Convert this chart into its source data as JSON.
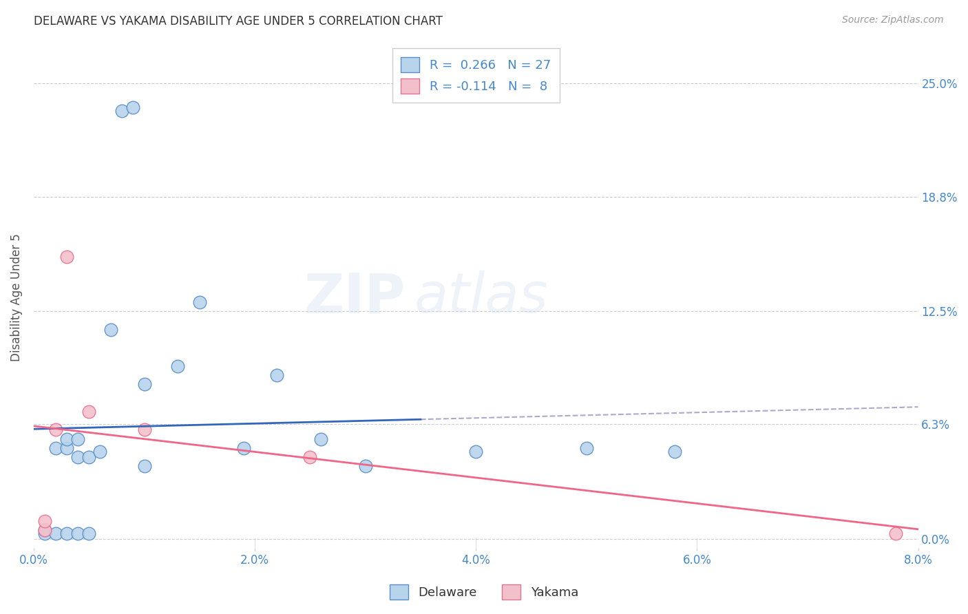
{
  "title": "DELAWARE VS YAKAMA DISABILITY AGE UNDER 5 CORRELATION CHART",
  "source": "Source: ZipAtlas.com",
  "ylabel": "Disability Age Under 5",
  "xlabel_ticks": [
    "0.0%",
    "2.0%",
    "4.0%",
    "6.0%",
    "8.0%"
  ],
  "xlabel_vals": [
    0.0,
    0.02,
    0.04,
    0.06,
    0.08
  ],
  "ytick_labels": [
    "0.0%",
    "6.3%",
    "12.5%",
    "18.8%",
    "25.0%"
  ],
  "ytick_vals": [
    0.0,
    0.063,
    0.125,
    0.188,
    0.25
  ],
  "xlim": [
    0.0,
    0.08
  ],
  "ylim": [
    -0.005,
    0.27
  ],
  "delaware_R": 0.266,
  "delaware_N": 27,
  "yakama_R": -0.114,
  "yakama_N": 8,
  "delaware_color": "#b8d4eb",
  "yakama_color": "#f2c0cb",
  "delaware_edge_color": "#5b8ec7",
  "yakama_edge_color": "#e87090",
  "delaware_line_color": "#3366bb",
  "yakama_line_color": "#ee6688",
  "trendline_color": "#aaaacc",
  "background_color": "#ffffff",
  "grid_color": "#cccccc",
  "title_color": "#333333",
  "axis_label_color": "#4488cc",
  "watermark": "ZIPatlas",
  "delaware_x": [
    0.001,
    0.001,
    0.002,
    0.002,
    0.003,
    0.003,
    0.003,
    0.004,
    0.004,
    0.004,
    0.005,
    0.005,
    0.006,
    0.007,
    0.008,
    0.009,
    0.01,
    0.01,
    0.013,
    0.015,
    0.019,
    0.022,
    0.026,
    0.03,
    0.04,
    0.05,
    0.058
  ],
  "delaware_y": [
    0.003,
    0.005,
    0.003,
    0.05,
    0.003,
    0.05,
    0.055,
    0.003,
    0.045,
    0.055,
    0.003,
    0.045,
    0.048,
    0.115,
    0.235,
    0.237,
    0.04,
    0.085,
    0.095,
    0.13,
    0.05,
    0.09,
    0.055,
    0.04,
    0.048,
    0.05,
    0.048
  ],
  "yakama_x": [
    0.001,
    0.001,
    0.002,
    0.003,
    0.005,
    0.01,
    0.025,
    0.078
  ],
  "yakama_y": [
    0.005,
    0.01,
    0.06,
    0.155,
    0.07,
    0.06,
    0.045,
    0.003
  ]
}
